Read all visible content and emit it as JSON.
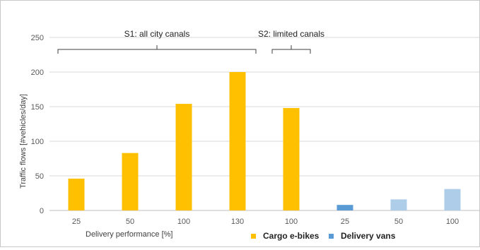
{
  "chart_data": {
    "type": "bar",
    "categories": [
      "25",
      "50",
      "100",
      "130",
      "100",
      "25",
      "50",
      "100"
    ],
    "series": [
      {
        "name": "Cargo e-bikes",
        "values": [
          46,
          83,
          154,
          200,
          148,
          null,
          null,
          null
        ],
        "color": "#ffc000"
      },
      {
        "name": "Delivery vans",
        "values": [
          null,
          null,
          null,
          null,
          null,
          8,
          null,
          null
        ],
        "color": "#5b9bd5"
      },
      {
        "name": "",
        "values": [
          null,
          null,
          null,
          null,
          null,
          null,
          16,
          31
        ],
        "color": "#aecde9"
      }
    ],
    "xlabel": "Delivery performance [%]",
    "ylabel": "Traffic flows [#vehicles/day]",
    "ylim": [
      0,
      250
    ],
    "yticks": [
      0,
      50,
      100,
      150,
      200,
      250
    ],
    "grid": true,
    "legend_position": "bottom",
    "annotations": [
      {
        "text": "S1: all city canals",
        "from_category": 0,
        "to_category": 3
      },
      {
        "text": "S2: limited canals",
        "from_category": 4,
        "to_category": 4
      }
    ]
  }
}
